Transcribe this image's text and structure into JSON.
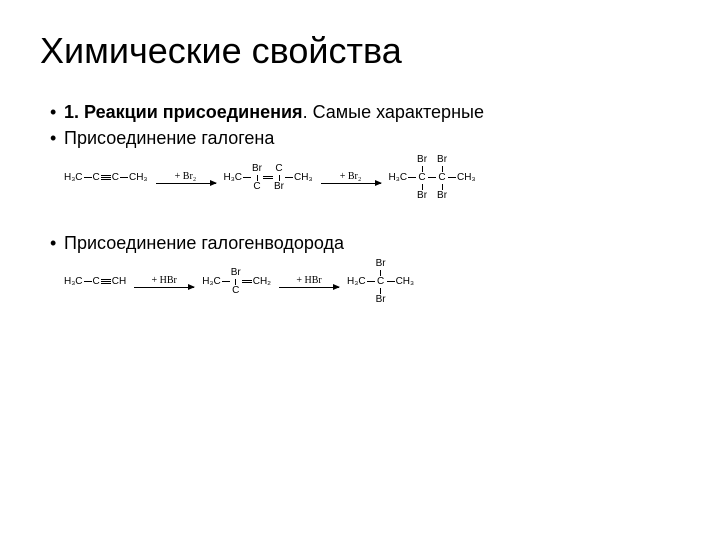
{
  "title": "Химические свойства",
  "bullets": {
    "b1_bold": "1. Реакции присоединения",
    "b1_rest": ". Самые характерные",
    "b2": "Присоединение галогена",
    "b3": "Присоединение галогенводорода"
  },
  "rxn1": {
    "r_left": "H₃C",
    "r_mid1": "C",
    "r_mid2": "C",
    "r_right": "CH₃",
    "arrow1_label": "+ Br₂",
    "p1_top_br": "Br",
    "p1_h3c": "H₃C",
    "p1_c1": "C",
    "p1_c2": "C",
    "p1_ch3": "CH₃",
    "p1_bot_br": "Br",
    "arrow2_label": "+ Br₂",
    "p2_top_br1": "Br",
    "p2_top_br2": "Br",
    "p2_h3c": "H₃C",
    "p2_c1": "C",
    "p2_c2": "C",
    "p2_ch3": "CH₃",
    "p2_bot_br1": "Br",
    "p2_bot_br2": "Br"
  },
  "rxn2": {
    "r_left": "H₃C",
    "r_mid1": "C",
    "r_mid2": "CH",
    "arrow1_label": "+ HBr",
    "p1_top_br": "Br",
    "p1_h3c": "H₃C",
    "p1_c": "C",
    "p1_ch2": "CH₂",
    "arrow2_label": "+ HBr",
    "p2_top_br": "Br",
    "p2_h3c": "H₃C",
    "p2_c": "C",
    "p2_ch3": "CH₃",
    "p2_bot_br": "Br"
  },
  "style": {
    "title_fontsize": 36,
    "body_fontsize": 18,
    "chem_fontsize": 10,
    "text_color": "#000000",
    "bg_color": "#ffffff"
  }
}
